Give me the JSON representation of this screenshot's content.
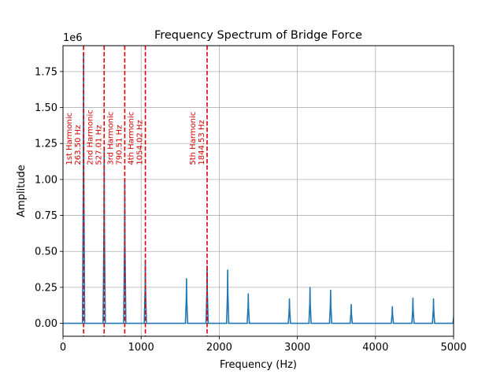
{
  "chart_data": {
    "type": "line",
    "title": "Frequency Spectrum of Bridge Force",
    "xlabel": "Frequency (Hz)",
    "ylabel": "Amplitude",
    "y_scale_label": "1e6",
    "xlim": [
      0,
      5000
    ],
    "ylim": [
      -0.09,
      1.93
    ],
    "y_unit_factor": 1000000,
    "grid": true,
    "x_ticks": [
      0,
      1000,
      2000,
      3000,
      4000,
      5000
    ],
    "x_tick_labels": [
      "0",
      "1000",
      "2000",
      "3000",
      "4000",
      "5000"
    ],
    "y_ticks": [
      0.0,
      0.25,
      0.5,
      0.75,
      1.0,
      1.25,
      1.5,
      1.75
    ],
    "y_tick_labels": [
      "0.00",
      "0.25",
      "0.50",
      "0.75",
      "1.00",
      "1.25",
      "1.50",
      "1.75"
    ],
    "series": [
      {
        "color": "#1f77b4",
        "peaks": [
          {
            "x": 263.5,
            "y": 1.87
          },
          {
            "x": 527.0,
            "y": 1.22
          },
          {
            "x": 790.5,
            "y": 1.0
          },
          {
            "x": 1054.0,
            "y": 0.44
          },
          {
            "x": 1581.0,
            "y": 0.31
          },
          {
            "x": 1844.5,
            "y": 0.4
          },
          {
            "x": 2108.0,
            "y": 0.37
          },
          {
            "x": 2371.5,
            "y": 0.205
          },
          {
            "x": 2898.5,
            "y": 0.17
          },
          {
            "x": 3162.0,
            "y": 0.25
          },
          {
            "x": 3425.5,
            "y": 0.23
          },
          {
            "x": 3689.0,
            "y": 0.13
          },
          {
            "x": 4216.0,
            "y": 0.115
          },
          {
            "x": 4479.5,
            "y": 0.175
          },
          {
            "x": 4743.0,
            "y": 0.17
          },
          {
            "x": 5006.5,
            "y": 0.1
          }
        ]
      }
    ],
    "harmonics": [
      {
        "x": 263.5,
        "label": "1st Harmonic",
        "freq_label": "263.50 Hz"
      },
      {
        "x": 527.01,
        "label": "2nd Harmonic",
        "freq_label": "527.01 Hz"
      },
      {
        "x": 790.51,
        "label": "3rd Harmonic",
        "freq_label": "790.51 Hz"
      },
      {
        "x": 1054.02,
        "label": "4th Harmonic",
        "freq_label": "1054.02 Hz"
      },
      {
        "x": 1844.53,
        "label": "5th Harmonic",
        "freq_label": "1844.53 Hz"
      }
    ],
    "harmonic_color": "#e00000"
  }
}
